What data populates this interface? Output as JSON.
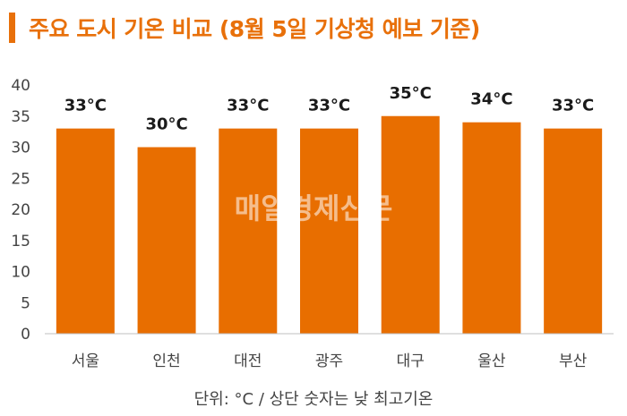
{
  "header": {
    "title": "주요 도시 기온 비교 (8월 5일 기상청 예보 기준)"
  },
  "footnote": "단위: °C / 상단 숫자는 낮 최고기온",
  "watermark": "매일경제신문",
  "colors": {
    "accent": "#E8700A",
    "bar": "#E86E00",
    "axis": "#bfbfbf"
  },
  "chart_data": {
    "type": "bar",
    "categories": [
      "서울",
      "인천",
      "대전",
      "광주",
      "대구",
      "울산",
      "부산"
    ],
    "values": [
      33,
      30,
      33,
      33,
      35,
      34,
      33
    ],
    "data_labels": [
      "33°C",
      "30°C",
      "33°C",
      "33°C",
      "35°C",
      "34°C",
      "33°C"
    ],
    "yticks": [
      "0",
      "5",
      "10",
      "15",
      "20",
      "25",
      "30",
      "35",
      "40"
    ],
    "ylim": [
      0,
      40
    ],
    "grid": false,
    "legend": "none"
  }
}
